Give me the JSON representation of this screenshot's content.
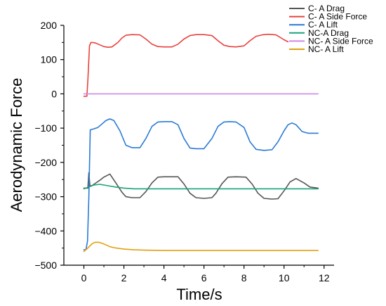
{
  "chart_data": {
    "type": "line",
    "title": "",
    "xlabel": "Time/s",
    "ylabel": "Aerodynamic Force",
    "xlim": [
      -1,
      12.5
    ],
    "ylim": [
      -500,
      200
    ],
    "xticks": [
      0,
      2,
      4,
      6,
      8,
      10,
      12
    ],
    "yticks": [
      200,
      100,
      0,
      -100,
      -200,
      -300,
      -400,
      -500
    ],
    "grid": false,
    "legend_position": "top-right",
    "series": [
      {
        "name": "C- A Drag",
        "color": "#555555",
        "x": [
          0.0,
          0.2,
          0.25,
          0.3,
          0.4,
          0.6,
          0.8,
          1.0,
          1.3,
          1.6,
          1.9,
          2.1,
          2.4,
          2.8,
          3.1,
          3.4,
          3.7,
          4.0,
          4.3,
          4.7,
          5.0,
          5.3,
          5.6,
          6.0,
          6.4,
          6.6,
          6.9,
          7.2,
          7.6,
          8.1,
          8.4,
          8.7,
          9.0,
          9.4,
          9.7,
          10.0,
          10.3,
          10.6,
          11.0,
          11.3,
          11.7
        ],
        "y": [
          -275,
          -275,
          -230,
          -268,
          -268,
          -260,
          -252,
          -243,
          -234,
          -260,
          -287,
          -300,
          -303,
          -303,
          -285,
          -260,
          -243,
          -242,
          -242,
          -242,
          -263,
          -290,
          -303,
          -305,
          -303,
          -290,
          -262,
          -243,
          -242,
          -243,
          -263,
          -290,
          -305,
          -307,
          -306,
          -283,
          -257,
          -247,
          -260,
          -272,
          -275
        ]
      },
      {
        "name": "C- A Side Force",
        "color": "#e8413d",
        "x": [
          0.0,
          0.1,
          0.15,
          0.2,
          0.28,
          0.35,
          0.45,
          0.6,
          0.8,
          1.0,
          1.2,
          1.4,
          1.7,
          1.9,
          2.1,
          2.4,
          2.8,
          3.1,
          3.4,
          3.7,
          4.0,
          4.4,
          4.7,
          5.0,
          5.3,
          5.6,
          6.0,
          6.4,
          6.7,
          7.0,
          7.3,
          7.6,
          8.0,
          8.3,
          8.6,
          8.9,
          9.2,
          9.6,
          10.0,
          10.2
        ],
        "y": [
          -7,
          -7,
          -7,
          40,
          140,
          150,
          150,
          148,
          143,
          138,
          136,
          137,
          150,
          163,
          171,
          173,
          172,
          160,
          145,
          138,
          137,
          137,
          145,
          160,
          170,
          173,
          173,
          170,
          155,
          142,
          138,
          137,
          140,
          155,
          168,
          172,
          174,
          172,
          158,
          152
        ]
      },
      {
        "name": "C- A Lift",
        "color": "#2a7ad6",
        "x": [
          0.0,
          0.1,
          0.18,
          0.25,
          0.32,
          0.5,
          0.7,
          0.9,
          1.1,
          1.3,
          1.5,
          1.8,
          2.1,
          2.4,
          2.8,
          3.1,
          3.4,
          3.7,
          4.0,
          4.4,
          4.7,
          5.0,
          5.3,
          5.6,
          6.0,
          6.4,
          6.7,
          7.0,
          7.3,
          7.6,
          8.0,
          8.3,
          8.6,
          9.0,
          9.4,
          9.7,
          10.0,
          10.2,
          10.4,
          10.6,
          10.9,
          11.2,
          11.4,
          11.7
        ],
        "y": [
          -455,
          -455,
          -430,
          -300,
          -105,
          -102,
          -98,
          -88,
          -78,
          -73,
          -78,
          -108,
          -150,
          -157,
          -157,
          -130,
          -95,
          -82,
          -81,
          -81,
          -90,
          -130,
          -158,
          -160,
          -160,
          -130,
          -95,
          -82,
          -81,
          -82,
          -98,
          -140,
          -162,
          -165,
          -163,
          -140,
          -108,
          -90,
          -85,
          -90,
          -110,
          -115,
          -115,
          -115
        ]
      },
      {
        "name": "NC-A Drag",
        "color": "#1aa37a",
        "x": [
          0.0,
          0.2,
          0.5,
          0.8,
          1.2,
          1.6,
          2.0,
          2.5,
          3.0,
          4.0,
          5.0,
          6.0,
          7.0,
          8.0,
          9.0,
          10.0,
          11.0,
          11.7
        ],
        "y": [
          -277,
          -273,
          -266,
          -264,
          -268,
          -272,
          -275,
          -277,
          -277,
          -277,
          -277,
          -277,
          -277,
          -277,
          -277,
          -277,
          -277,
          -277
        ]
      },
      {
        "name": "NC- A Side Force",
        "color": "#cc88e8",
        "x": [
          0.0,
          1.0,
          2.0,
          4.0,
          6.0,
          8.0,
          10.0,
          11.7
        ],
        "y": [
          0,
          0,
          0,
          0,
          0,
          0,
          0,
          0
        ]
      },
      {
        "name": "NC- A Lift",
        "color": "#e0a013",
        "x": [
          0.0,
          0.2,
          0.4,
          0.55,
          0.75,
          1.0,
          1.3,
          1.6,
          2.0,
          2.5,
          3.0,
          4.0,
          5.0,
          6.0,
          7.0,
          8.0,
          9.0,
          10.0,
          11.0,
          11.7
        ],
        "y": [
          -460,
          -450,
          -438,
          -433,
          -433,
          -438,
          -446,
          -450,
          -453,
          -455,
          -456,
          -457,
          -457,
          -457,
          -457,
          -457,
          -457,
          -457,
          -457,
          -457
        ]
      }
    ]
  }
}
